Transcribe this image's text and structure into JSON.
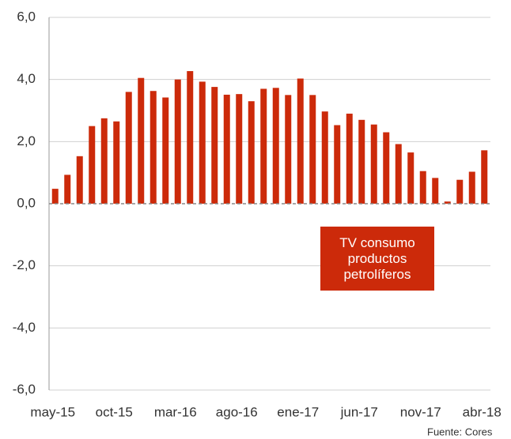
{
  "chart_data": {
    "type": "bar",
    "categories": [
      "may-15",
      null,
      null,
      null,
      null,
      "oct-15",
      null,
      null,
      null,
      null,
      "mar-16",
      null,
      null,
      null,
      null,
      "ago-16",
      null,
      null,
      null,
      null,
      "ene-17",
      null,
      null,
      null,
      null,
      "jun-17",
      null,
      null,
      null,
      null,
      "nov-17",
      null,
      null,
      null,
      null,
      "abr-18"
    ],
    "values": [
      0.48,
      0.93,
      1.53,
      2.5,
      2.75,
      2.65,
      3.6,
      4.05,
      3.63,
      3.42,
      4.0,
      4.27,
      3.93,
      3.76,
      3.51,
      3.53,
      3.3,
      3.7,
      3.73,
      3.5,
      4.03,
      3.5,
      2.97,
      2.53,
      2.9,
      2.7,
      2.55,
      2.3,
      1.92,
      1.65,
      1.05,
      0.83,
      0.07,
      0.77,
      1.03,
      1.72
    ],
    "color": "#cc2a0a",
    "ylim": [
      -6,
      6
    ],
    "yticks": [
      {
        "value": -6,
        "label": "-6,0"
      },
      {
        "value": -4,
        "label": "-4,0"
      },
      {
        "value": -2,
        "label": "-2,0"
      },
      {
        "value": 0,
        "label": "0,0"
      },
      {
        "value": 2,
        "label": "2,0"
      },
      {
        "value": 4,
        "label": "4,0"
      },
      {
        "value": 6,
        "label": "6,0"
      }
    ],
    "grid": true,
    "annotation": "TV consumo productos petrolíferos",
    "source": "Fuente: Cores"
  }
}
